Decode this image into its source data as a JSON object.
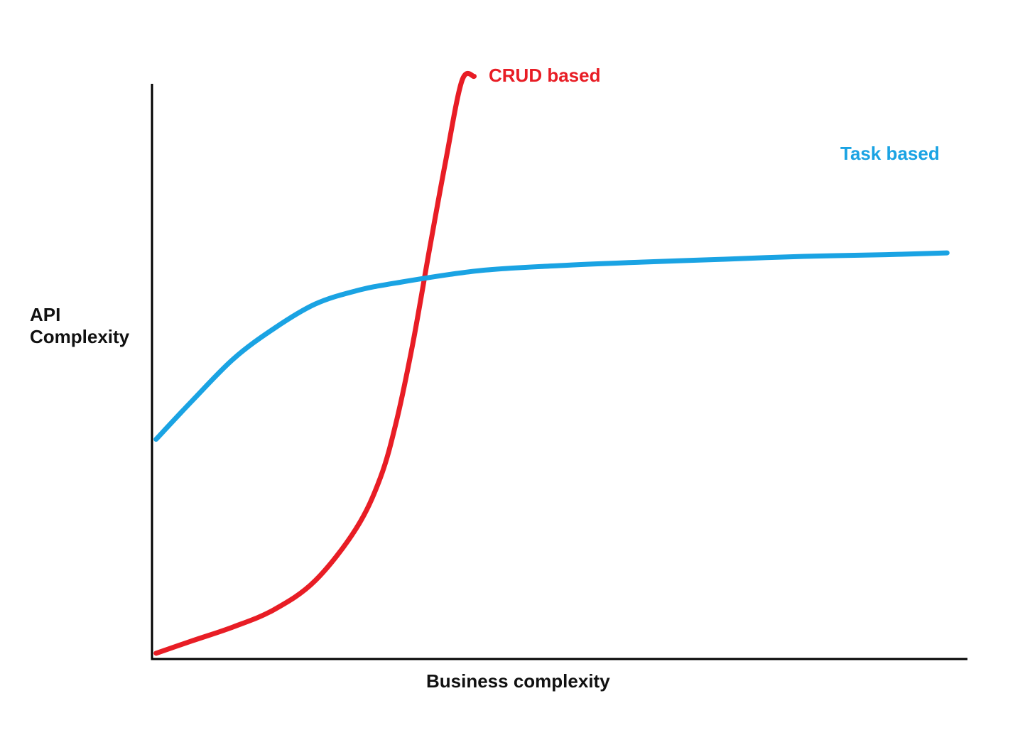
{
  "chart_data": {
    "type": "line",
    "title": "",
    "xlabel": "Business complexity",
    "ylabel": [
      "API",
      "Complexity"
    ],
    "xlim": [
      0,
      100
    ],
    "ylim": [
      0,
      100
    ],
    "grid": false,
    "legend": "inline labels at line ends",
    "axis_color": "#000000",
    "series": [
      {
        "name": "CRUD based",
        "color": "#e81d25",
        "points": [
          [
            0.5,
            1.0
          ],
          [
            5,
            3.2
          ],
          [
            10,
            5.6
          ],
          [
            15,
            8.6
          ],
          [
            20,
            13.6
          ],
          [
            25,
            22.6
          ],
          [
            28,
            31.5
          ],
          [
            30,
            41.5
          ],
          [
            32,
            55.0
          ],
          [
            34,
            71.0
          ],
          [
            36,
            86.5
          ],
          [
            38,
            100.5
          ],
          [
            39.5,
            101.3
          ]
        ]
      },
      {
        "name": "Task based",
        "color": "#1aa3e3",
        "points": [
          [
            0.5,
            38.2
          ],
          [
            5,
            45.0
          ],
          [
            10,
            52.2
          ],
          [
            15,
            57.5
          ],
          [
            20,
            61.7
          ],
          [
            25,
            64.0
          ],
          [
            30,
            65.4
          ],
          [
            40,
            67.5
          ],
          [
            50,
            68.4
          ],
          [
            60,
            69.0
          ],
          [
            70,
            69.5
          ],
          [
            80,
            70.0
          ],
          [
            90,
            70.3
          ],
          [
            97.5,
            70.6
          ]
        ]
      }
    ]
  }
}
